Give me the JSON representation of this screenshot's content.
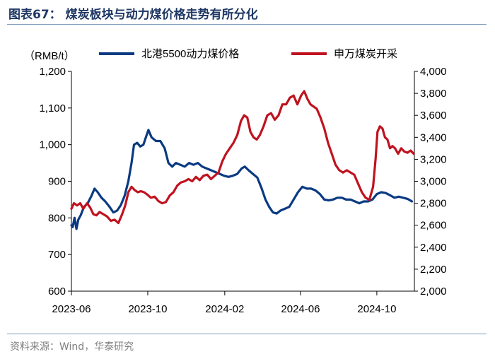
{
  "figure": {
    "title": "图表67：  煤炭板块与动力煤价格走势有所分化",
    "source": "资料来源：Wind，华泰研究"
  },
  "colors": {
    "series1": "#0a3a82",
    "series2": "#c0121f",
    "title": "#1f3864",
    "axis": "#000000",
    "source": "#7f7f7f"
  },
  "chart_data": {
    "type": "line",
    "left_unit": "（RMB/t）",
    "grid": false,
    "legend_position": "top",
    "x_range": [
      "2023-06-01",
      "2024-11-30"
    ],
    "x_ticks": [
      "2023-06",
      "2023-10",
      "2024-02",
      "2024-06",
      "2024-10"
    ],
    "x_tick_dates": [
      "2023-06-01",
      "2023-10-01",
      "2024-02-01",
      "2024-06-01",
      "2024-10-01"
    ],
    "y_left": {
      "range": [
        600,
        1200
      ],
      "ticks": [
        600,
        700,
        800,
        900,
        1000,
        1100,
        1200
      ],
      "tick_labels": [
        "600",
        "700",
        "800",
        "900",
        "1,000",
        "1,100",
        "1,200"
      ]
    },
    "y_right": {
      "range": [
        2000,
        4000
      ],
      "ticks": [
        2000,
        2200,
        2400,
        2600,
        2800,
        3000,
        3200,
        3400,
        3600,
        3800,
        4000
      ],
      "tick_labels": [
        "2,000",
        "2,200",
        "2,400",
        "2,600",
        "2,800",
        "3,000",
        "3,200",
        "3,400",
        "3,600",
        "3,800",
        "4,000"
      ]
    },
    "series": [
      {
        "name": "北港5500动力煤价格",
        "axis": "left",
        "points": [
          [
            "2023-06-01",
            780
          ],
          [
            "2023-06-03",
            775
          ],
          [
            "2023-06-06",
            800
          ],
          [
            "2023-06-09",
            770
          ],
          [
            "2023-06-12",
            795
          ],
          [
            "2023-06-16",
            808
          ],
          [
            "2023-06-21",
            830
          ],
          [
            "2023-06-27",
            840
          ],
          [
            "2023-07-03",
            860
          ],
          [
            "2023-07-08",
            880
          ],
          [
            "2023-07-13",
            870
          ],
          [
            "2023-07-19",
            855
          ],
          [
            "2023-07-25",
            845
          ],
          [
            "2023-08-01",
            830
          ],
          [
            "2023-08-07",
            815
          ],
          [
            "2023-08-13",
            820
          ],
          [
            "2023-08-19",
            835
          ],
          [
            "2023-08-25",
            860
          ],
          [
            "2023-08-31",
            900
          ],
          [
            "2023-09-05",
            950
          ],
          [
            "2023-09-09",
            1000
          ],
          [
            "2023-09-14",
            1005
          ],
          [
            "2023-09-19",
            995
          ],
          [
            "2023-09-24",
            1000
          ],
          [
            "2023-09-28",
            1020
          ],
          [
            "2023-10-02",
            1040
          ],
          [
            "2023-10-07",
            1020
          ],
          [
            "2023-10-14",
            1010
          ],
          [
            "2023-10-21",
            1010
          ],
          [
            "2023-10-28",
            990
          ],
          [
            "2023-11-03",
            950
          ],
          [
            "2023-11-09",
            940
          ],
          [
            "2023-11-15",
            950
          ],
          [
            "2023-11-22",
            945
          ],
          [
            "2023-11-29",
            940
          ],
          [
            "2023-12-06",
            950
          ],
          [
            "2023-12-13",
            945
          ],
          [
            "2023-12-20",
            950
          ],
          [
            "2023-12-27",
            940
          ],
          [
            "2024-01-03",
            935
          ],
          [
            "2024-01-10",
            930
          ],
          [
            "2024-01-17",
            925
          ],
          [
            "2024-01-24",
            920
          ],
          [
            "2024-01-31",
            915
          ],
          [
            "2024-02-07",
            912
          ],
          [
            "2024-02-14",
            915
          ],
          [
            "2024-02-21",
            920
          ],
          [
            "2024-02-28",
            935
          ],
          [
            "2024-03-04",
            940
          ],
          [
            "2024-03-10",
            930
          ],
          [
            "2024-03-17",
            920
          ],
          [
            "2024-03-24",
            910
          ],
          [
            "2024-03-31",
            880
          ],
          [
            "2024-04-06",
            850
          ],
          [
            "2024-04-12",
            830
          ],
          [
            "2024-04-18",
            815
          ],
          [
            "2024-04-24",
            812
          ],
          [
            "2024-04-30",
            820
          ],
          [
            "2024-05-07",
            825
          ],
          [
            "2024-05-14",
            830
          ],
          [
            "2024-05-21",
            850
          ],
          [
            "2024-05-28",
            870
          ],
          [
            "2024-06-04",
            885
          ],
          [
            "2024-06-11",
            880
          ],
          [
            "2024-06-18",
            880
          ],
          [
            "2024-06-25",
            875
          ],
          [
            "2024-07-02",
            865
          ],
          [
            "2024-07-09",
            850
          ],
          [
            "2024-07-16",
            848
          ],
          [
            "2024-07-23",
            850
          ],
          [
            "2024-07-30",
            855
          ],
          [
            "2024-08-06",
            855
          ],
          [
            "2024-08-13",
            850
          ],
          [
            "2024-08-20",
            850
          ],
          [
            "2024-08-27",
            845
          ],
          [
            "2024-09-03",
            840
          ],
          [
            "2024-09-10",
            845
          ],
          [
            "2024-09-17",
            845
          ],
          [
            "2024-09-24",
            850
          ],
          [
            "2024-10-01",
            865
          ],
          [
            "2024-10-08",
            870
          ],
          [
            "2024-10-15",
            868
          ],
          [
            "2024-10-22",
            862
          ],
          [
            "2024-10-29",
            855
          ],
          [
            "2024-11-05",
            858
          ],
          [
            "2024-11-12",
            855
          ],
          [
            "2024-11-19",
            852
          ],
          [
            "2024-11-26",
            845
          ]
        ]
      },
      {
        "name": "申万煤炭开采",
        "axis": "right",
        "points": [
          [
            "2023-06-01",
            2750
          ],
          [
            "2023-06-05",
            2800
          ],
          [
            "2023-06-10",
            2780
          ],
          [
            "2023-06-15",
            2800
          ],
          [
            "2023-06-20",
            2750
          ],
          [
            "2023-06-26",
            2800
          ],
          [
            "2023-07-01",
            2760
          ],
          [
            "2023-07-06",
            2700
          ],
          [
            "2023-07-11",
            2690
          ],
          [
            "2023-07-16",
            2720
          ],
          [
            "2023-07-22",
            2700
          ],
          [
            "2023-07-28",
            2680
          ],
          [
            "2023-08-03",
            2640
          ],
          [
            "2023-08-09",
            2650
          ],
          [
            "2023-08-15",
            2620
          ],
          [
            "2023-08-21",
            2700
          ],
          [
            "2023-08-26",
            2780
          ],
          [
            "2023-08-31",
            2900
          ],
          [
            "2023-09-05",
            2950
          ],
          [
            "2023-09-10",
            2920
          ],
          [
            "2023-09-15",
            2900
          ],
          [
            "2023-09-20",
            2910
          ],
          [
            "2023-09-25",
            2900
          ],
          [
            "2023-09-30",
            2880
          ],
          [
            "2023-10-06",
            2850
          ],
          [
            "2023-10-12",
            2860
          ],
          [
            "2023-10-18",
            2820
          ],
          [
            "2023-10-24",
            2800
          ],
          [
            "2023-10-30",
            2810
          ],
          [
            "2023-11-05",
            2870
          ],
          [
            "2023-11-11",
            2900
          ],
          [
            "2023-11-17",
            2960
          ],
          [
            "2023-11-23",
            2990
          ],
          [
            "2023-11-29",
            3000
          ],
          [
            "2023-12-05",
            3020
          ],
          [
            "2023-12-11",
            3000
          ],
          [
            "2023-12-17",
            3040
          ],
          [
            "2023-12-23",
            3010
          ],
          [
            "2023-12-29",
            3050
          ],
          [
            "2024-01-04",
            3060
          ],
          [
            "2024-01-10",
            3020
          ],
          [
            "2024-01-16",
            3050
          ],
          [
            "2024-01-22",
            3080
          ],
          [
            "2024-01-28",
            3180
          ],
          [
            "2024-02-03",
            3250
          ],
          [
            "2024-02-09",
            3300
          ],
          [
            "2024-02-15",
            3350
          ],
          [
            "2024-02-21",
            3420
          ],
          [
            "2024-02-27",
            3550
          ],
          [
            "2024-03-03",
            3600
          ],
          [
            "2024-03-08",
            3580
          ],
          [
            "2024-03-13",
            3450
          ],
          [
            "2024-03-18",
            3400
          ],
          [
            "2024-03-23",
            3380
          ],
          [
            "2024-03-28",
            3420
          ],
          [
            "2024-04-03",
            3500
          ],
          [
            "2024-04-09",
            3600
          ],
          [
            "2024-04-15",
            3620
          ],
          [
            "2024-04-21",
            3560
          ],
          [
            "2024-04-27",
            3600
          ],
          [
            "2024-05-03",
            3700
          ],
          [
            "2024-05-09",
            3700
          ],
          [
            "2024-05-15",
            3760
          ],
          [
            "2024-05-21",
            3780
          ],
          [
            "2024-05-27",
            3700
          ],
          [
            "2024-06-02",
            3780
          ],
          [
            "2024-06-07",
            3820
          ],
          [
            "2024-06-12",
            3750
          ],
          [
            "2024-06-17",
            3700
          ],
          [
            "2024-06-22",
            3680
          ],
          [
            "2024-06-27",
            3660
          ],
          [
            "2024-07-03",
            3580
          ],
          [
            "2024-07-09",
            3480
          ],
          [
            "2024-07-15",
            3350
          ],
          [
            "2024-07-21",
            3250
          ],
          [
            "2024-07-27",
            3150
          ],
          [
            "2024-08-02",
            3100
          ],
          [
            "2024-08-08",
            3080
          ],
          [
            "2024-08-14",
            3100
          ],
          [
            "2024-08-20",
            3080
          ],
          [
            "2024-08-26",
            3060
          ],
          [
            "2024-09-01",
            2980
          ],
          [
            "2024-09-07",
            2900
          ],
          [
            "2024-09-13",
            2850
          ],
          [
            "2024-09-19",
            2830
          ],
          [
            "2024-09-25",
            2950
          ],
          [
            "2024-09-29",
            3200
          ],
          [
            "2024-10-02",
            3450
          ],
          [
            "2024-10-06",
            3500
          ],
          [
            "2024-10-10",
            3480
          ],
          [
            "2024-10-14",
            3400
          ],
          [
            "2024-10-18",
            3380
          ],
          [
            "2024-10-22",
            3300
          ],
          [
            "2024-10-26",
            3320
          ],
          [
            "2024-10-30",
            3300
          ],
          [
            "2024-11-04",
            3250
          ],
          [
            "2024-11-09",
            3300
          ],
          [
            "2024-11-14",
            3270
          ],
          [
            "2024-11-19",
            3260
          ],
          [
            "2024-11-24",
            3280
          ],
          [
            "2024-11-29",
            3250
          ]
        ]
      }
    ]
  }
}
